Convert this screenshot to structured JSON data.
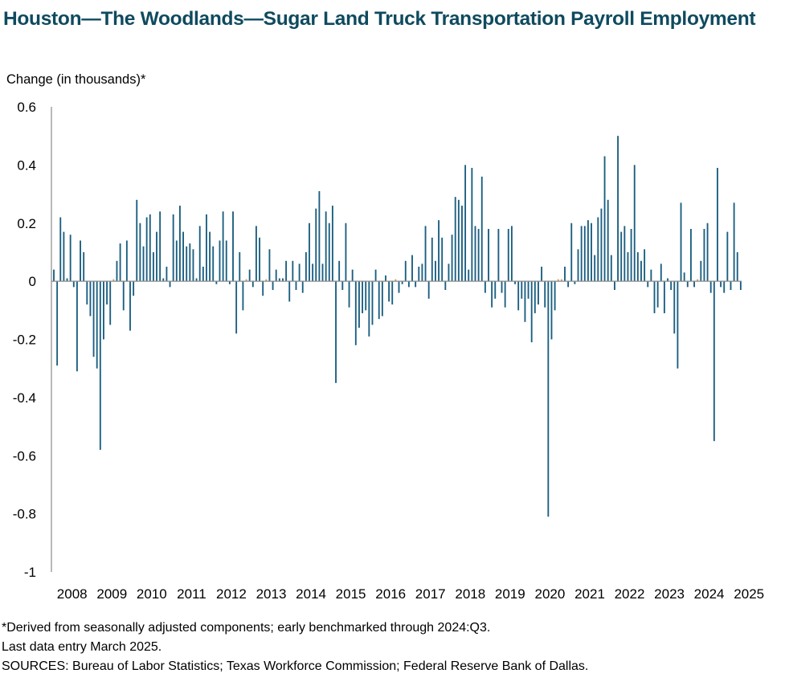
{
  "chart_data": {
    "type": "bar",
    "title": "Houston—The Woodlands—Sugar Land Truck Transportation Payroll Employment",
    "ylabel": "Change (in thousands)*",
    "xlabel": "",
    "ylim": [
      -1,
      0.6
    ],
    "yticks": [
      0.6,
      0.4,
      0.2,
      0,
      -0.2,
      -0.4,
      -0.6,
      -0.8,
      -1
    ],
    "ytick_labels": [
      "0.6",
      "0.4",
      "0.2",
      "0",
      "-0.2",
      "-0.4",
      "-0.6",
      "-0.8",
      "-1"
    ],
    "xtick_labels": [
      "2008",
      "2009",
      "2010",
      "2011",
      "2012",
      "2013",
      "2014",
      "2015",
      "2016",
      "2017",
      "2018",
      "2019",
      "2020",
      "2021",
      "2022",
      "2023",
      "2024",
      "2025"
    ],
    "start": "2008-01",
    "end": "2025-03",
    "frequency": "monthly",
    "bar_color": "#1a5e80",
    "highlight_color": "#c49a6c",
    "values": [
      0.04,
      -0.29,
      0.22,
      0.17,
      0.01,
      0.16,
      -0.02,
      -0.31,
      0.14,
      0.1,
      -0.08,
      -0.12,
      -0.26,
      -0.3,
      -0.58,
      -0.2,
      -0.08,
      -0.15,
      0.0,
      0.07,
      0.13,
      -0.1,
      0.14,
      -0.17,
      -0.05,
      0.28,
      0.2,
      0.12,
      0.22,
      0.23,
      0.1,
      0.17,
      0.24,
      0.01,
      0.05,
      -0.02,
      0.23,
      0.14,
      0.26,
      0.17,
      0.12,
      0.13,
      0.11,
      0.01,
      0.19,
      0.05,
      0.23,
      0.17,
      0.12,
      -0.01,
      0.14,
      0.24,
      0.14,
      -0.01,
      0.24,
      -0.18,
      0.1,
      -0.1,
      0.0,
      0.04,
      -0.02,
      0.19,
      0.15,
      -0.05,
      0.0,
      0.11,
      -0.03,
      0.04,
      0.01,
      0.01,
      0.07,
      -0.07,
      0.07,
      -0.03,
      0.06,
      -0.04,
      0.1,
      0.2,
      0.06,
      0.25,
      0.31,
      0.06,
      0.24,
      0.2,
      0.26,
      -0.35,
      0.07,
      -0.03,
      0.2,
      -0.09,
      0.04,
      -0.22,
      -0.16,
      -0.11,
      -0.1,
      -0.19,
      -0.15,
      0.04,
      -0.13,
      -0.12,
      0.02,
      -0.07,
      -0.08,
      0.0,
      -0.04,
      -0.01,
      0.07,
      -0.02,
      0.09,
      -0.02,
      0.05,
      0.06,
      0.19,
      -0.06,
      0.15,
      0.07,
      0.21,
      0.15,
      -0.03,
      0.06,
      0.16,
      0.29,
      0.28,
      0.26,
      0.4,
      0.04,
      0.39,
      0.19,
      0.18,
      0.36,
      -0.04,
      0.18,
      -0.09,
      -0.06,
      0.18,
      -0.04,
      -0.09,
      0.18,
      0.19,
      -0.01,
      -0.1,
      -0.06,
      -0.14,
      -0.06,
      -0.21,
      -0.11,
      -0.08,
      0.05,
      -0.09,
      -0.81,
      -0.2,
      -0.1,
      0.0,
      0.0,
      0.05,
      -0.02,
      0.2,
      -0.01,
      0.11,
      0.19,
      0.19,
      0.21,
      0.2,
      0.09,
      0.22,
      0.25,
      0.43,
      0.28,
      0.09,
      -0.03,
      0.5,
      0.17,
      0.19,
      0.1,
      0.18,
      0.4,
      0.1,
      0.07,
      0.11,
      -0.02,
      0.04,
      -0.11,
      -0.09,
      0.06,
      -0.11,
      0.01,
      -0.03,
      -0.18,
      -0.3,
      0.27,
      0.03,
      -0.02,
      0.18,
      -0.02,
      0.0,
      0.07,
      0.18,
      0.2,
      -0.04,
      -0.55,
      0.39,
      -0.02,
      -0.04,
      0.17,
      -0.03,
      0.27,
      0.1,
      -0.03
    ]
  },
  "notes": {
    "footnote": "*Derived from seasonally adjusted components; early benchmarked through 2024:Q3.",
    "last_entry": "Last data entry March 2025.",
    "sources": "SOURCES: Bureau of Labor Statistics; Texas Workforce Commission; Federal Reserve Bank of Dallas."
  }
}
